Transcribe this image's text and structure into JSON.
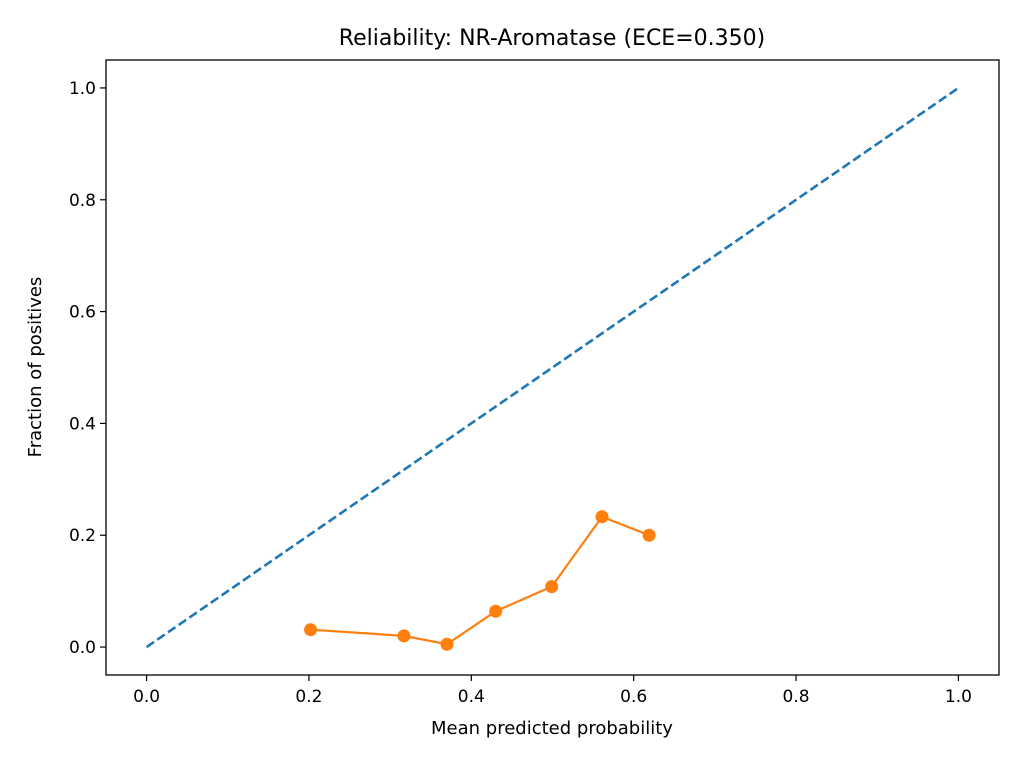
{
  "chart_data": {
    "type": "line",
    "title": "Reliability: NR-Aromatase (ECE=0.350)",
    "xlabel": "Mean predicted probability",
    "ylabel": "Fraction of positives",
    "xlim": [
      -0.05,
      1.05
    ],
    "ylim": [
      -0.05,
      1.05
    ],
    "xticks": [
      0.0,
      0.2,
      0.4,
      0.6,
      0.8,
      1.0
    ],
    "yticks": [
      0.0,
      0.2,
      0.4,
      0.6,
      0.8,
      1.0
    ],
    "xtick_labels": [
      "0.0",
      "0.2",
      "0.4",
      "0.6",
      "0.8",
      "1.0"
    ],
    "ytick_labels": [
      "0.0",
      "0.2",
      "0.4",
      "0.6",
      "0.8",
      "1.0"
    ],
    "grid": false,
    "series": [
      {
        "style": "dashed",
        "color": "#1f77b4",
        "x": [
          0.0,
          1.0
        ],
        "y": [
          0.0,
          1.0
        ]
      },
      {
        "style": "line-with-markers",
        "color": "#ff7f0e",
        "x": [
          0.202,
          0.317,
          0.37,
          0.43,
          0.499,
          0.561,
          0.619
        ],
        "y": [
          0.031,
          0.02,
          0.005,
          0.064,
          0.108,
          0.233,
          0.2
        ]
      }
    ]
  }
}
